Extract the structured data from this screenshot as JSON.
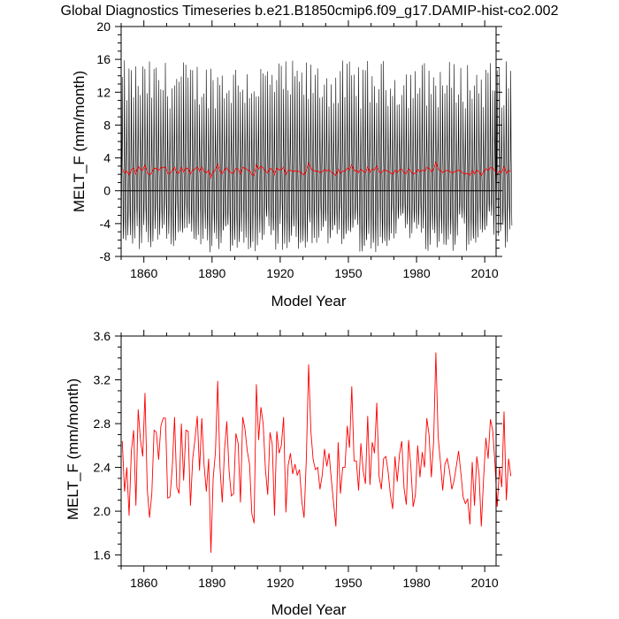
{
  "title": "Global Diagnostics Timeseries b.e21.B1850cmip6.f09_g17.DAMIP-hist-co2.002",
  "colors": {
    "monthly": "#000000",
    "annual": "#ff0000",
    "frame": "#000000",
    "zero_line": "#000000"
  },
  "chart_data": [
    {
      "type": "line",
      "xlabel": "Model Year",
      "ylabel": "MELT_F (mm/month)",
      "xlim": [
        1850,
        2015
      ],
      "ylim": [
        -8,
        20
      ],
      "x_ticks": [
        1860,
        1890,
        1920,
        1950,
        1980,
        2010
      ],
      "x_tick_labels": [
        "1860",
        "1890",
        "1920",
        "1950",
        "1980",
        "2010"
      ],
      "y_ticks": [
        -8,
        -4,
        0,
        4,
        8,
        12,
        16,
        20
      ],
      "y_tick_labels": [
        "-8",
        "-4",
        "0",
        "4",
        "8",
        "12",
        "16",
        "20"
      ],
      "reference_line_y": 0,
      "series": [
        {
          "resolution": "monthly",
          "color": "#000000",
          "start_year": 1850,
          "annual_cycle_description": "strong seasonal oscillation, peaks about 10-15.9, troughs about -3 to -7.5",
          "peak_range": [
            10,
            15.9
          ],
          "trough_range": [
            -7.5,
            -2.5
          ]
        },
        {
          "resolution": "annual",
          "color": "#ff0000",
          "values_ref": "annual_mean_values"
        }
      ]
    },
    {
      "type": "line",
      "xlabel": "Model Year",
      "ylabel": "MELT_F (mm/month)",
      "xlim": [
        1850,
        2015
      ],
      "ylim": [
        1.5,
        3.6
      ],
      "x_ticks": [
        1860,
        1890,
        1920,
        1950,
        1980,
        2010
      ],
      "x_tick_labels": [
        "1860",
        "1890",
        "1920",
        "1950",
        "1980",
        "2010"
      ],
      "y_ticks": [
        1.6,
        2.0,
        2.4,
        2.8,
        3.2,
        3.6
      ],
      "y_tick_labels": [
        "1.6",
        "2.0",
        "2.4",
        "2.8",
        "3.2",
        "3.6"
      ],
      "series": [
        {
          "resolution": "annual",
          "color": "#ff0000",
          "values_ref": "annual_mean_values"
        }
      ]
    }
  ],
  "annual_mean_start_year": 1850,
  "annual_mean_values": [
    2.64,
    2.18,
    2.4,
    1.96,
    2.55,
    2.74,
    2.05,
    2.93,
    2.65,
    2.5,
    3.08,
    2.2,
    1.94,
    2.16,
    2.74,
    2.72,
    2.47,
    2.78,
    2.85,
    2.85,
    2.12,
    2.13,
    2.4,
    2.86,
    2.22,
    2.16,
    2.8,
    2.28,
    2.74,
    2.73,
    2.05,
    2.48,
    2.66,
    2.87,
    2.37,
    2.85,
    2.42,
    2.18,
    2.48,
    1.62,
    2.3,
    2.54,
    3.19,
    2.4,
    2.08,
    2.56,
    2.82,
    2.37,
    2.14,
    2.16,
    2.71,
    2.62,
    2.08,
    2.86,
    2.75,
    2.55,
    2.43,
    1.98,
    1.89,
    3.16,
    2.65,
    2.95,
    2.8,
    2.38,
    2.15,
    2.72,
    2.61,
    1.96,
    2.73,
    2.53,
    2.6,
    2.86,
    1.99,
    2.42,
    2.53,
    2.34,
    2.43,
    2.33,
    2.38,
    2.09,
    1.94,
    2.48,
    3.34,
    2.73,
    2.47,
    2.38,
    2.4,
    2.2,
    2.33,
    2.57,
    2.41,
    2.53,
    2.29,
    2.07,
    1.86,
    2.63,
    2.16,
    2.4,
    2.4,
    2.78,
    2.58,
    3.14,
    2.46,
    2.46,
    2.19,
    2.62,
    2.37,
    2.25,
    2.87,
    2.24,
    2.63,
    2.53,
    2.99,
    2.32,
    2.2,
    2.48,
    2.5,
    2.36,
    2.15,
    2.02,
    2.5,
    2.27,
    2.52,
    2.64,
    2.21,
    2.06,
    2.65,
    2.4,
    2.04,
    2.15,
    2.6,
    2.31,
    2.54,
    2.4,
    2.85,
    2.7,
    2.31,
    2.63,
    3.45,
    2.68,
    2.45,
    2.19,
    2.43,
    2.48,
    2.37,
    2.2,
    2.28,
    2.41,
    2.55,
    2.35,
    2.13,
    2.07,
    2.11,
    1.88,
    2.45,
    2.05,
    2.5,
    2.34,
    1.86,
    2.3,
    2.67,
    2.48,
    2.84,
    2.74,
    2.44,
    2.04,
    2.4,
    2.22,
    2.91,
    2.1,
    2.48,
    2.32
  ]
}
